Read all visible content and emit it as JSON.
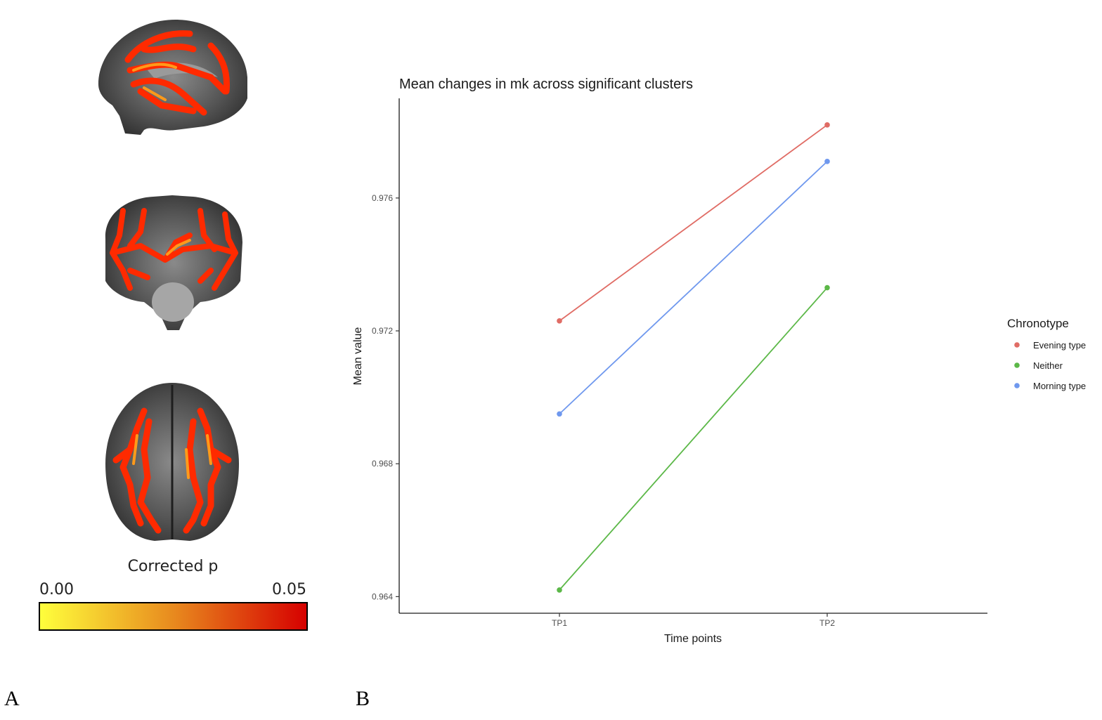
{
  "panel_a": {
    "letter": "A",
    "colorbar": {
      "title": "Corrected p",
      "min_label": "0.00",
      "max_label": "0.05",
      "color_low": "#ffff3c",
      "color_mid": "#e88a1e",
      "color_high": "#d60000"
    },
    "brain_views": [
      "sagittal",
      "coronal",
      "axial"
    ],
    "overlay_color": "#ff2a00",
    "overlay_highlight": "#ff9a1a"
  },
  "panel_b": {
    "letter": "B"
  },
  "chart_data": {
    "type": "line",
    "title": "Mean changes in mk across significant clusters",
    "xlabel": "Time points",
    "ylabel": "Mean value",
    "categories": [
      "TP1",
      "TP2"
    ],
    "ylim": [
      0.9635,
      0.979
    ],
    "yticks": [
      0.964,
      0.968,
      0.972,
      0.976
    ],
    "ytick_labels": [
      "0.964",
      "0.968",
      "0.972",
      "0.976"
    ],
    "grid": false,
    "legend": {
      "title": "Chronotype",
      "placement": "right"
    },
    "series": [
      {
        "name": "Evening type",
        "color": "#e06c65",
        "values": [
          0.9723,
          0.9782
        ]
      },
      {
        "name": "Neither",
        "color": "#5cb848",
        "values": [
          0.9642,
          0.9733
        ]
      },
      {
        "name": "Morning type",
        "color": "#6f98ee",
        "values": [
          0.9695,
          0.9771
        ]
      }
    ]
  }
}
